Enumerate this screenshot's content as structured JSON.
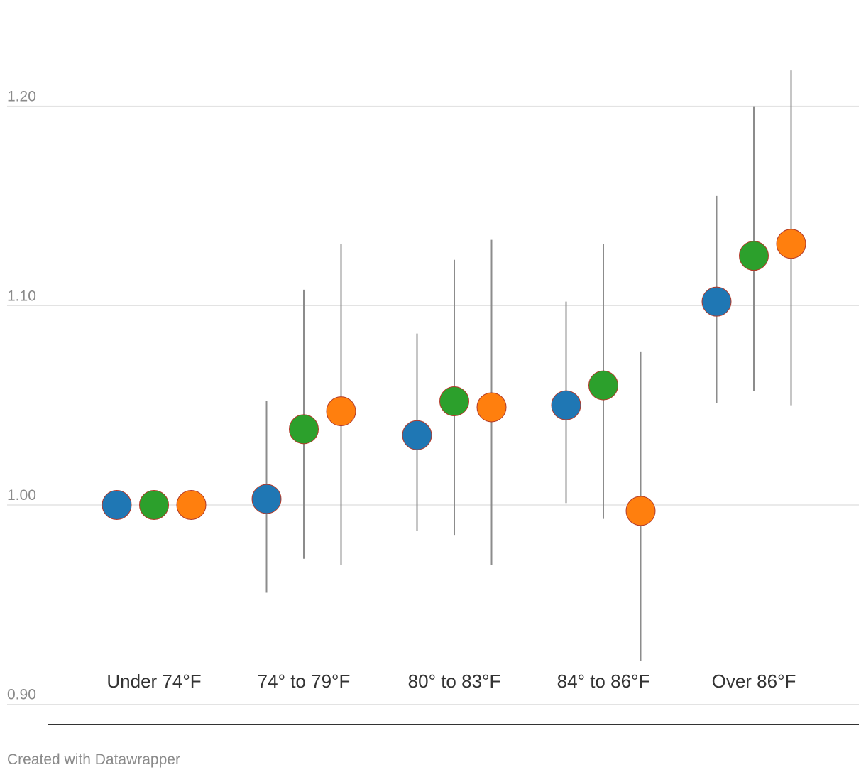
{
  "chart_data": {
    "type": "scatter",
    "title": "",
    "xlabel": "",
    "ylabel": "",
    "ylim": [
      0.9,
      1.23
    ],
    "yticks": [
      "1.20",
      "1.10",
      "1.00",
      "0.90"
    ],
    "ytick_values": [
      1.2,
      1.1,
      1.0,
      0.9
    ],
    "grid": true,
    "categories": [
      "Under 74°F",
      "74° to 79°F",
      "80° to 83°F",
      "84° to 86°F",
      "Over 86°F"
    ],
    "series": [
      {
        "color": "#1f77b4",
        "values": [
          1.0,
          1.003,
          1.035,
          1.05,
          1.102
        ],
        "lower": [
          null,
          0.956,
          0.987,
          1.001,
          1.051
        ],
        "upper": [
          null,
          1.052,
          1.086,
          1.102,
          1.155
        ]
      },
      {
        "color": "#2ca02c",
        "values": [
          1.0,
          1.038,
          1.052,
          1.06,
          1.125
        ],
        "lower": [
          null,
          0.973,
          0.985,
          0.993,
          1.057
        ],
        "upper": [
          null,
          1.108,
          1.123,
          1.131,
          1.2
        ]
      },
      {
        "color": "#ff7f0e",
        "values": [
          1.0,
          1.047,
          1.049,
          0.997,
          1.131
        ],
        "lower": [
          null,
          0.97,
          0.97,
          0.922,
          1.05
        ],
        "upper": [
          null,
          1.131,
          1.133,
          1.077,
          1.218
        ]
      }
    ]
  },
  "footer": {
    "credit": "Created with Datawrapper"
  }
}
